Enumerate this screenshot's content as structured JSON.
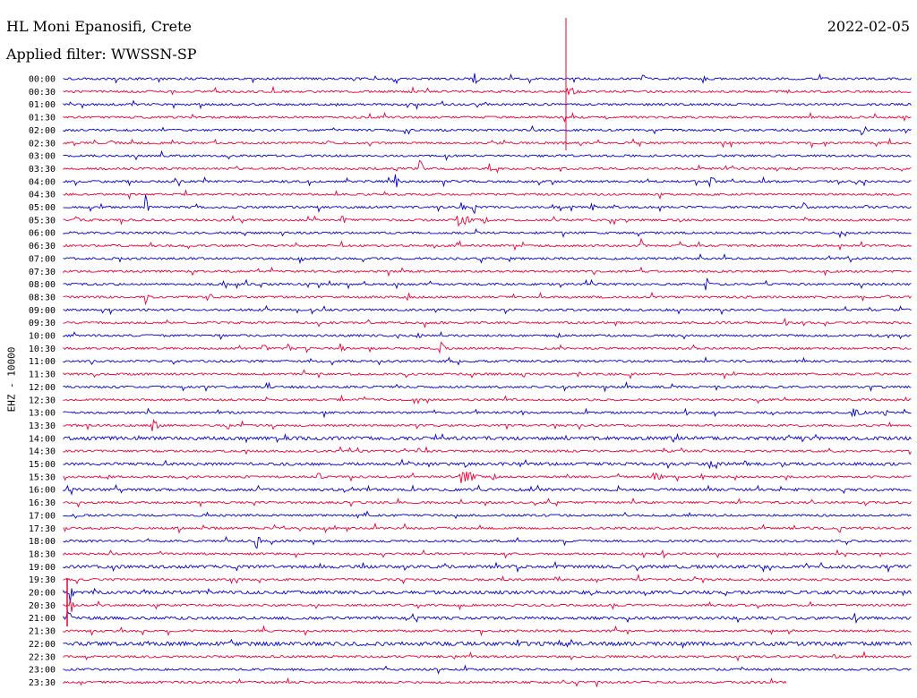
{
  "header": {
    "station": "HL Moni Epanosifi, Crete",
    "filter": "Applied filter: WWSSN-SP",
    "date": "2022-02-05"
  },
  "axis_label": "EHZ - 10000",
  "colors": {
    "odd_trace": "#0000cc",
    "even_trace": "#ee0033"
  },
  "time_labels": [
    "00:00",
    "00:30",
    "01:00",
    "01:30",
    "02:00",
    "02:30",
    "03:00",
    "03:30",
    "04:00",
    "04:30",
    "05:00",
    "05:30",
    "06:00",
    "06:30",
    "07:00",
    "07:30",
    "08:00",
    "08:30",
    "09:00",
    "09:30",
    "10:00",
    "10:30",
    "11:00",
    "11:30",
    "12:00",
    "12:30",
    "13:00",
    "13:30",
    "14:00",
    "14:30",
    "15:00",
    "15:30",
    "16:00",
    "16:30",
    "17:00",
    "17:30",
    "18:00",
    "18:30",
    "19:00",
    "19:30",
    "20:00",
    "20:30",
    "21:00",
    "21:30",
    "22:00",
    "22:30",
    "23:00",
    "23:30"
  ]
}
